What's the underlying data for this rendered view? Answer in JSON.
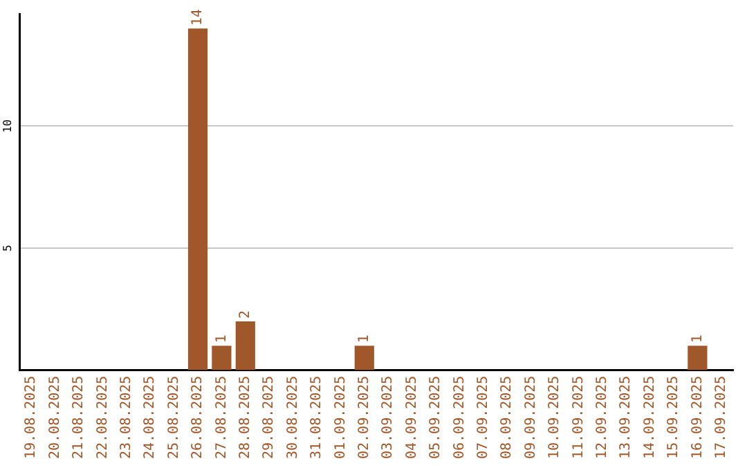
{
  "chart_data": {
    "type": "bar",
    "categories": [
      "19.08.2025",
      "20.08.2025",
      "21.08.2025",
      "22.08.2025",
      "23.08.2025",
      "24.08.2025",
      "25.08.2025",
      "26.08.2025",
      "27.08.2025",
      "28.08.2025",
      "29.08.2025",
      "30.08.2025",
      "31.08.2025",
      "01.09.2025",
      "02.09.2025",
      "03.09.2025",
      "04.09.2025",
      "05.09.2025",
      "06.09.2025",
      "07.09.2025",
      "08.09.2025",
      "09.09.2025",
      "10.09.2025",
      "11.09.2025",
      "12.09.2025",
      "13.09.2025",
      "14.09.2025",
      "15.09.2025",
      "16.09.2025",
      "17.09.2025"
    ],
    "values": [
      0,
      0,
      0,
      0,
      0,
      0,
      0,
      14,
      1,
      2,
      0,
      0,
      0,
      0,
      1,
      0,
      0,
      0,
      0,
      0,
      0,
      0,
      0,
      0,
      0,
      0,
      0,
      0,
      1,
      0
    ],
    "value_labels": [
      null,
      null,
      null,
      null,
      null,
      null,
      null,
      "14",
      "1",
      "2",
      null,
      null,
      null,
      null,
      "1",
      null,
      null,
      null,
      null,
      null,
      null,
      null,
      null,
      null,
      null,
      null,
      null,
      null,
      "1",
      null
    ],
    "color": "#a0582a",
    "ylim": [
      0,
      14.6
    ],
    "yticks": [
      5,
      10
    ],
    "grid": "y",
    "legend": false
  }
}
